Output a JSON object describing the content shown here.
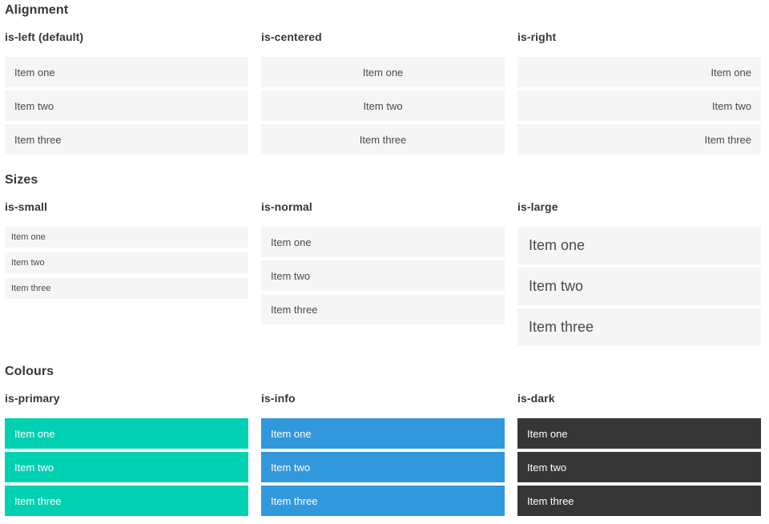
{
  "colors": {
    "page_bg": "#ffffff",
    "heading": "#363636",
    "item_bg": "#f5f5f5",
    "item_text": "#4a4a4a",
    "colored_item_text": "#ffffff",
    "primary": "#00d1b2",
    "info": "#3298dc",
    "dark": "#363636"
  },
  "sections": [
    {
      "title": "Alignment",
      "groups": [
        {
          "label": "is-left (default)",
          "items": [
            "Item one",
            "Item two",
            "Item three"
          ]
        },
        {
          "label": "is-centered",
          "items": [
            "Item one",
            "Item two",
            "Item three"
          ]
        },
        {
          "label": "is-right",
          "items": [
            "Item one",
            "Item two",
            "Item three"
          ]
        }
      ]
    },
    {
      "title": "Sizes",
      "groups": [
        {
          "label": "is-small",
          "items": [
            "Item one",
            "Item two",
            "Item three"
          ]
        },
        {
          "label": "is-normal",
          "items": [
            "Item one",
            "Item two",
            "Item three"
          ]
        },
        {
          "label": "is-large",
          "items": [
            "Item one",
            "Item two",
            "Item three"
          ]
        }
      ]
    },
    {
      "title": "Colours",
      "groups": [
        {
          "label": "is-primary",
          "items": [
            "Item one",
            "Item two",
            "Item three"
          ]
        },
        {
          "label": "is-info",
          "items": [
            "Item one",
            "Item two",
            "Item three"
          ]
        },
        {
          "label": "is-dark",
          "items": [
            "Item one",
            "Item two",
            "Item three"
          ]
        }
      ]
    }
  ]
}
